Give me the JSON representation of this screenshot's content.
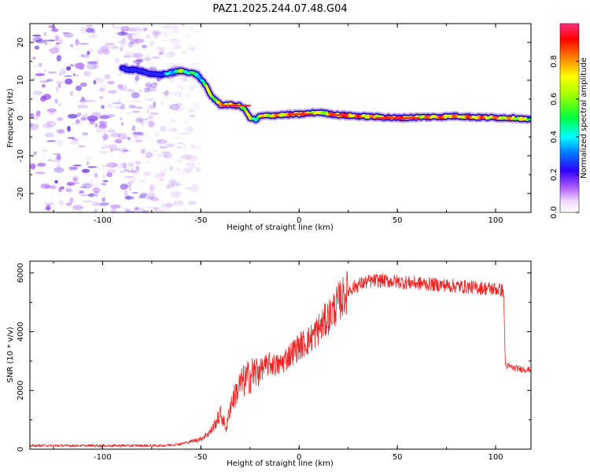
{
  "title": "PAZ1.2025.244.07.48.G04",
  "colors": {
    "snr_line": "#ee2222",
    "ridge_low": "#4400dd",
    "ridge_high": "#ff2020",
    "noise": "#7a22e8"
  },
  "chart_data": [
    {
      "type": "heatmap",
      "name": "spectrogram",
      "xlabel": "Height of straight line (km)",
      "ylabel": "Frequency (Hz)",
      "xlim": [
        -137,
        118
      ],
      "ylim": [
        -25,
        25
      ],
      "xticks": [
        "-100",
        "-50",
        "0",
        "50",
        "100"
      ],
      "yticks": [
        "-20",
        "-10",
        "0",
        "10",
        "20"
      ],
      "ridge": {
        "x": [
          -90,
          -80,
          -75,
          -70,
          -65,
          -60,
          -55,
          -52,
          -48,
          -45,
          -40,
          -35,
          -30,
          -27,
          -25,
          -22,
          -20,
          -10,
          0,
          10,
          20,
          30,
          40,
          50,
          60,
          70,
          80,
          90,
          100,
          110,
          118
        ],
        "freq": [
          13,
          12.5,
          11.5,
          11.5,
          12,
          12.5,
          12,
          11.5,
          9,
          6,
          3.5,
          3.5,
          3.2,
          2,
          0,
          -0.5,
          0.5,
          0.8,
          1,
          1.5,
          0.8,
          0.5,
          0.3,
          0,
          0.2,
          0.3,
          0.5,
          0.2,
          0.1,
          0,
          -0.5
        ],
        "amplitude": [
          0.05,
          0.08,
          0.1,
          0.12,
          0.4,
          0.55,
          0.5,
          0.35,
          0.55,
          0.6,
          0.7,
          0.8,
          0.7,
          0.6,
          0.6,
          0.5,
          0.65,
          0.75,
          0.8,
          0.6,
          0.85,
          0.8,
          0.7,
          0.9,
          0.7,
          0.8,
          0.75,
          0.8,
          0.75,
          0.7,
          0.6
        ]
      },
      "noise_region_km": [
        -137,
        -50
      ]
    },
    {
      "type": "colorbar",
      "label": "Normalized spectral amplitude",
      "range": [
        0,
        1
      ],
      "ticks": [
        "0.0",
        "0.2",
        "0.4",
        "0.6",
        "0.8"
      ]
    },
    {
      "type": "line",
      "name": "snr",
      "xlabel": "Height of straight line (km)",
      "ylabel": "SNR (10 * v/v)",
      "xlim": [
        -137,
        118
      ],
      "ylim": [
        0,
        6400
      ],
      "xticks": [
        "-100",
        "-50",
        "0",
        "50",
        "100"
      ],
      "yticks": [
        "0",
        "2000",
        "4000",
        "6000"
      ],
      "x": [
        -137,
        -70,
        -60,
        -50,
        -45,
        -40,
        -37,
        -35,
        -30,
        -25,
        -20,
        -15,
        -10,
        -5,
        0,
        5,
        10,
        15,
        20,
        25,
        30,
        35,
        40,
        50,
        60,
        70,
        80,
        90,
        100,
        104,
        105,
        110,
        118
      ],
      "values": [
        120,
        120,
        180,
        350,
        600,
        1200,
        700,
        1500,
        2200,
        2500,
        2700,
        2900,
        2850,
        3200,
        3500,
        3700,
        4100,
        4500,
        5000,
        5400,
        5600,
        5700,
        5750,
        5700,
        5650,
        5600,
        5550,
        5500,
        5450,
        5400,
        2850,
        2750,
        2700
      ]
    }
  ]
}
